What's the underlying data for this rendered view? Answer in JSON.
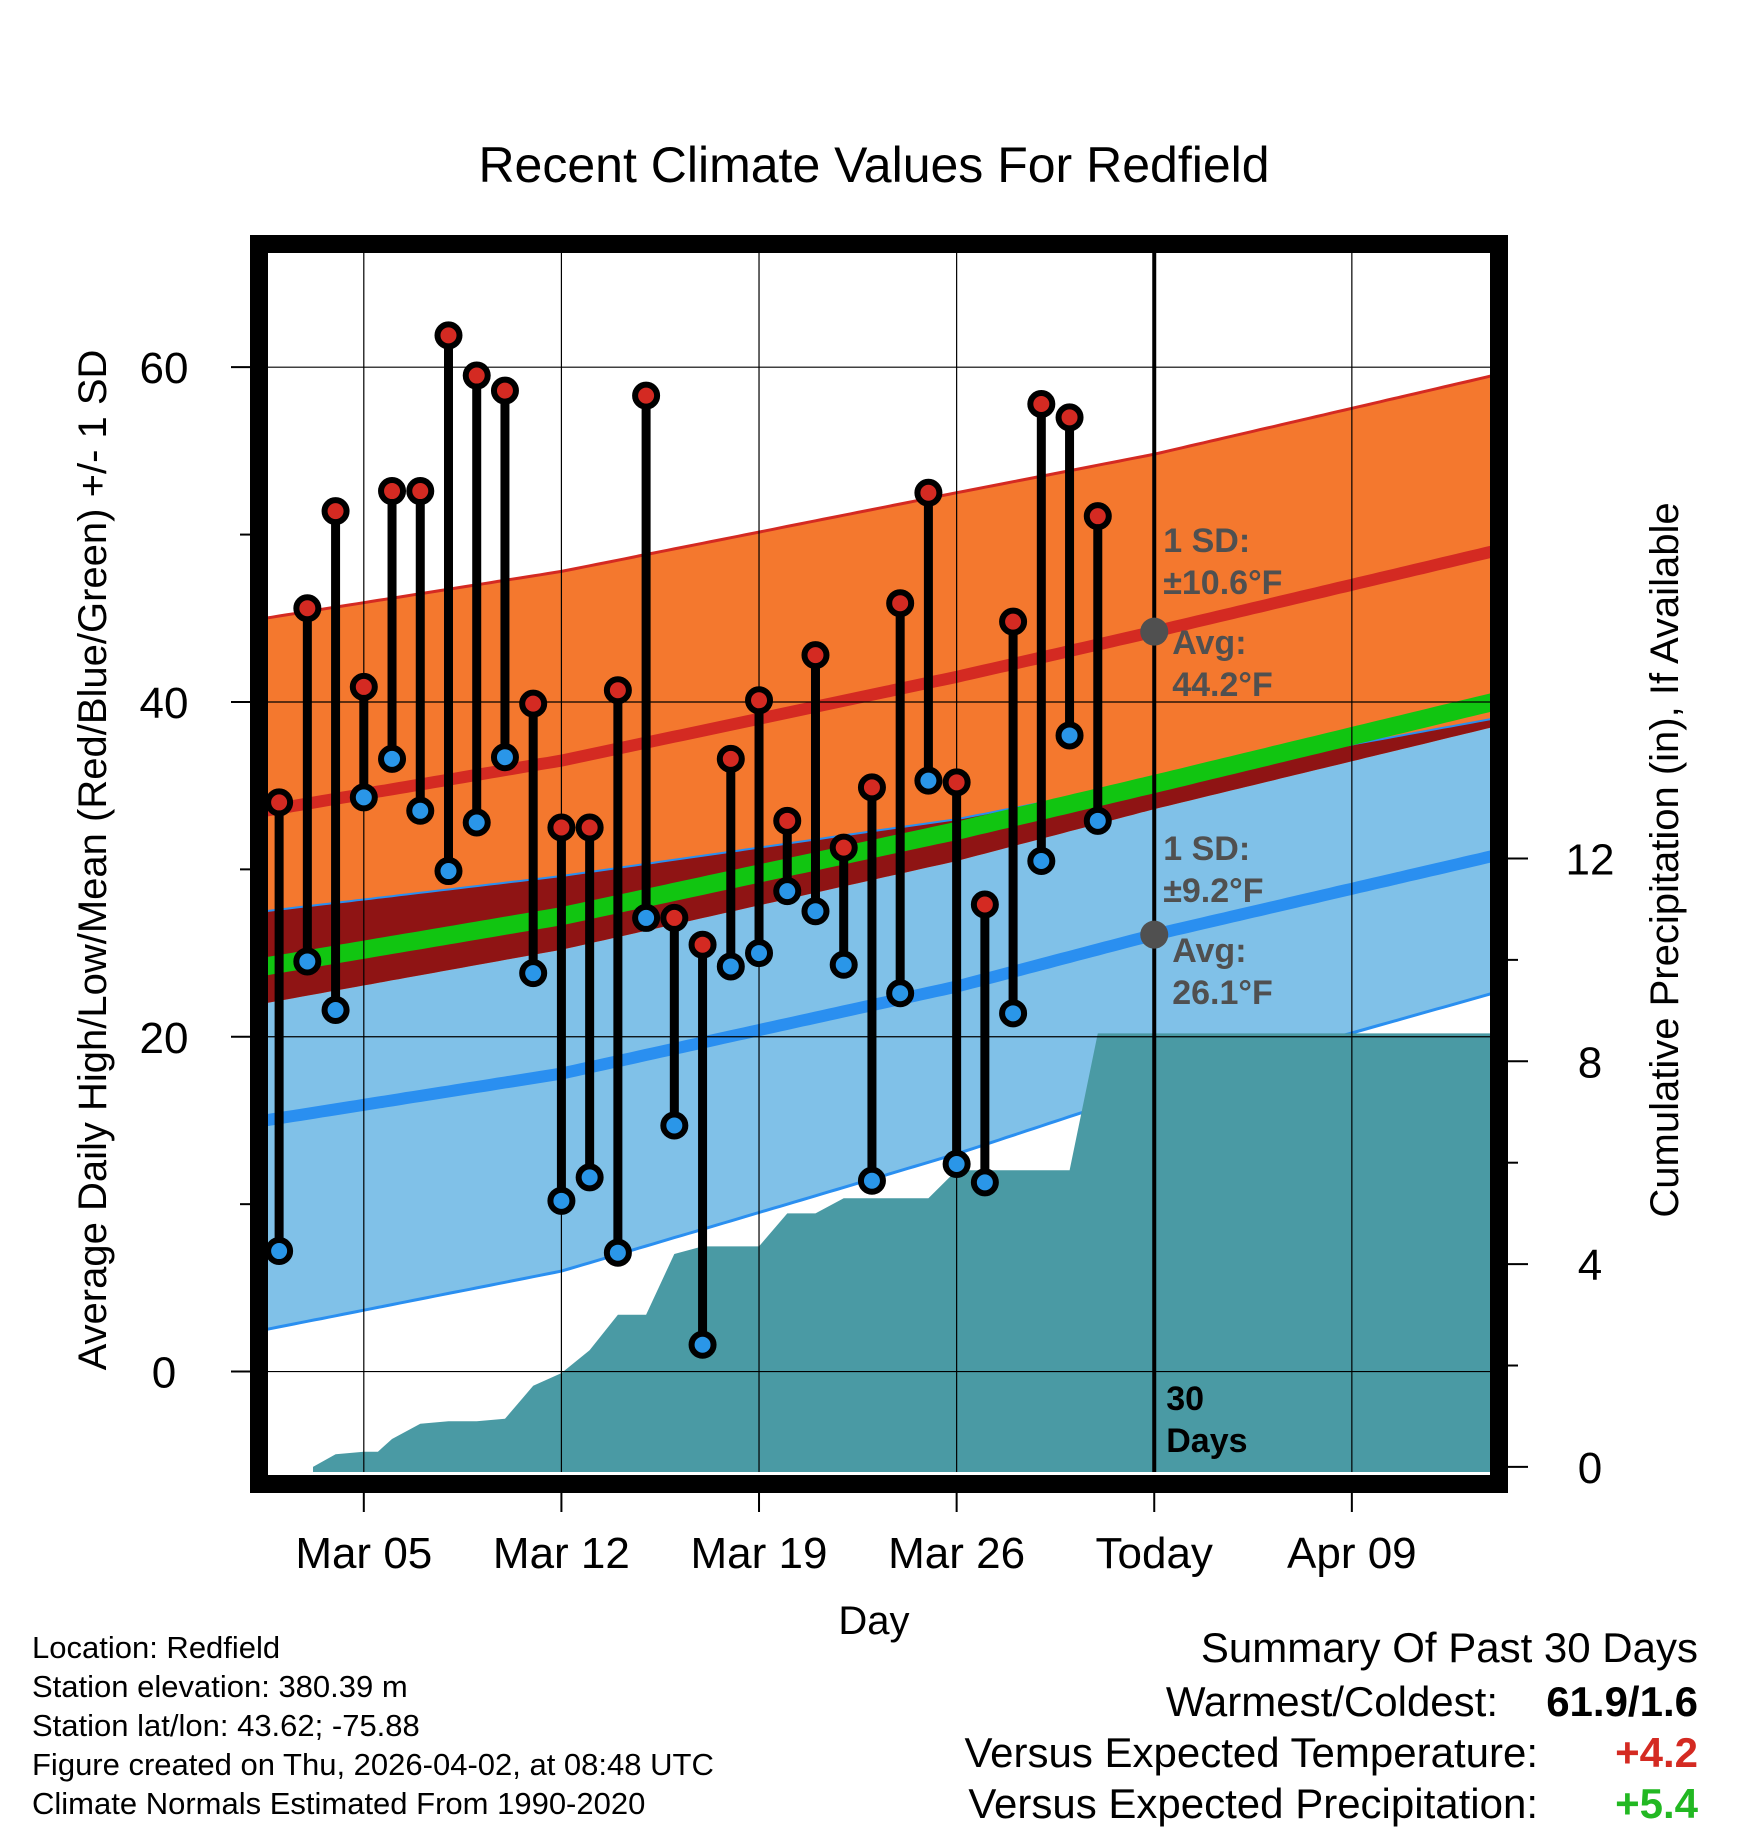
{
  "chart_data": {
    "type": "line",
    "title": "Recent Climate Values For Redfield",
    "xlabel": "Day",
    "ylabel": "Average Daily High/Low/Mean (Red/Blue/Green) +/- 1 SD",
    "y2label": "Cumulative Precipitation (in), If Available",
    "ylim": [
      -6,
      67
    ],
    "y2lim": [
      -0.1,
      24
    ],
    "xlim": [
      0.5,
      44
    ],
    "yticks": [
      "0",
      "20",
      "40",
      "60"
    ],
    "y2ticks": [
      "0",
      "4",
      "8",
      "12"
    ],
    "xticks": [
      {
        "day": 4,
        "label": "Mar 05"
      },
      {
        "day": 11,
        "label": "Mar 12"
      },
      {
        "day": 18,
        "label": "Mar 19"
      },
      {
        "day": 25,
        "label": "Mar 26"
      },
      {
        "day": 32,
        "label": "Today"
      },
      {
        "day": 39,
        "label": "Apr 09"
      }
    ],
    "today_day": 32,
    "today_label_line1": "30",
    "today_label_line2": "Days",
    "normals": {
      "days": [
        0.5,
        11,
        25,
        32,
        44
      ],
      "high_avg": [
        33.5,
        36.5,
        41.5,
        44.2,
        49.0
      ],
      "high_sd": [
        11.5,
        11.3,
        11.0,
        10.6,
        10.5
      ],
      "low_avg": [
        15.0,
        17.8,
        23.0,
        26.1,
        30.8
      ],
      "low_sd": [
        12.5,
        11.8,
        10.0,
        9.2,
        8.2
      ],
      "mean_avg": [
        24.2,
        27.2,
        32.3,
        35.1,
        40.0
      ]
    },
    "high_annotation": {
      "sd_label": "1 SD:",
      "sd_value": "±10.6°F",
      "avg_label": "Avg:",
      "avg_value": "44.2°F",
      "avg": 44.2
    },
    "low_annotation": {
      "sd_label": "1 SD:",
      "sd_value": "±9.2°F",
      "avg_label": "Avg:",
      "avg_value": "26.1°F",
      "avg": 26.1
    },
    "series": [
      {
        "name": "Daily High",
        "color": "#d42a22",
        "values": [
          34.0,
          45.6,
          51.4,
          40.9,
          52.6,
          52.6,
          61.9,
          59.5,
          58.6,
          39.9,
          32.5,
          32.5,
          40.7,
          58.3,
          27.1,
          25.5,
          36.6,
          40.1,
          32.9,
          42.8,
          31.3,
          34.9,
          45.9,
          52.5,
          35.2,
          27.9,
          44.8,
          57.8,
          57.0,
          51.1
        ]
      },
      {
        "name": "Daily Low",
        "color": "#2a96e8",
        "values": [
          7.2,
          24.5,
          21.6,
          34.3,
          36.6,
          33.5,
          29.9,
          32.8,
          36.7,
          23.8,
          10.2,
          11.6,
          7.1,
          27.1,
          14.7,
          1.6,
          24.2,
          25.0,
          28.7,
          27.5,
          24.3,
          11.4,
          22.6,
          35.3,
          12.4,
          11.3,
          21.4,
          30.5,
          38.0,
          32.9
        ]
      }
    ],
    "obs_days": [
      1,
      2,
      3,
      4,
      5,
      6,
      7,
      8,
      9,
      10,
      11,
      12,
      13,
      14,
      15,
      16,
      17,
      18,
      19,
      20,
      21,
      22,
      23,
      24,
      25,
      26,
      27,
      28,
      29,
      30
    ],
    "precip": {
      "days": [
        2.2,
        3,
        4,
        4.5,
        5,
        6,
        7,
        8,
        9,
        10,
        11,
        12,
        13,
        14,
        15,
        16,
        17,
        18,
        19,
        20,
        21,
        22,
        23,
        24,
        25,
        26,
        27,
        28,
        29,
        30,
        31,
        44
      ],
      "values": [
        0,
        0.25,
        0.3,
        0.3,
        0.55,
        0.85,
        0.9,
        0.9,
        0.95,
        1.6,
        1.85,
        2.3,
        3.0,
        3.0,
        4.2,
        4.35,
        4.35,
        4.35,
        5.0,
        5.0,
        5.3,
        5.3,
        5.3,
        5.3,
        5.85,
        5.85,
        5.85,
        5.85,
        5.85,
        8.55,
        8.55,
        8.55
      ]
    },
    "colors": {
      "high_band": "#f4782e",
      "high_line": "#d42a22",
      "overlap_band": "#8f1414",
      "low_band": "#80c1e8",
      "low_line": "#2a8ff0",
      "mean_line": "#11c511",
      "precip": "#4a9aa4"
    }
  },
  "footer": {
    "location": "Location: Redfield",
    "elevation": "Station elevation: 380.39 m",
    "latlon": "Station lat/lon: 43.62; -75.88",
    "created": "Figure created on Thu, 2026-04-02, at 08:48 UTC",
    "normals": "Climate Normals Estimated From 1990-2020"
  },
  "summary": {
    "title": "Summary Of Past 30 Days",
    "warmest_label": "Warmest/Coldest:",
    "warmest_value": "61.9/1.6",
    "temp_label": "Versus Expected Temperature:",
    "temp_value": "+4.2",
    "temp_color": "#d42a22",
    "precip_label": "Versus Expected Precipitation:",
    "precip_value": "+5.4",
    "precip_color": "#22b822"
  }
}
